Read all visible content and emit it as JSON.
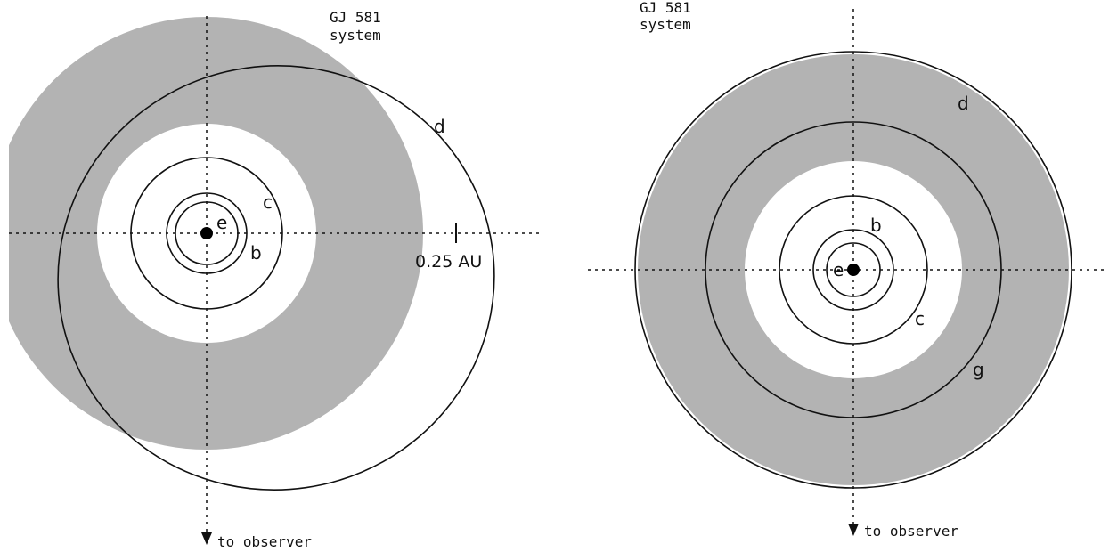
{
  "left_panel": {
    "title_line1": "GJ 581",
    "title_line2": "system",
    "planet_labels": {
      "e": "e",
      "b": "b",
      "c": "c",
      "d": "d"
    },
    "scale_label": "0.25 AU",
    "observer_label": "to observer"
  },
  "right_panel": {
    "title_line1": "GJ 581",
    "title_line2": "system",
    "planet_labels": {
      "e": "e",
      "b": "b",
      "c": "c",
      "d": "d",
      "g": "g"
    },
    "observer_label": "to observer"
  },
  "colors": {
    "habitable_zone": "#b3b3b3",
    "orbit": "#111111",
    "background": "#ffffff"
  }
}
